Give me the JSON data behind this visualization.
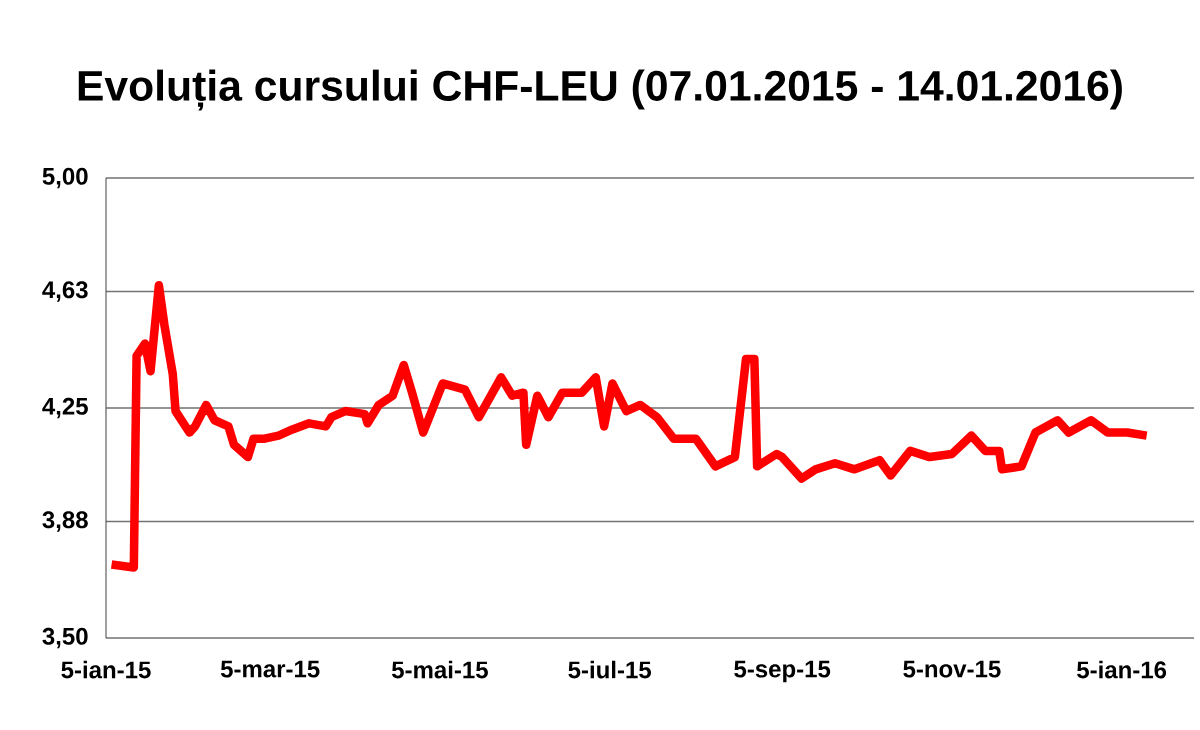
{
  "chart_data": {
    "type": "line",
    "title": "Evoluția cursului CHF-LEU (07.01.2015 - 14.01.2016)",
    "x": [
      "2015-01-07",
      "2015-01-15",
      "2015-01-16",
      "2015-01-19",
      "2015-01-21",
      "2015-01-24",
      "2015-01-26",
      "2015-01-29",
      "2015-01-30",
      "2015-02-04",
      "2015-02-06",
      "2015-02-10",
      "2015-02-13",
      "2015-02-18",
      "2015-02-20",
      "2015-02-25",
      "2015-02-27",
      "2015-03-03",
      "2015-03-08",
      "2015-03-13",
      "2015-03-19",
      "2015-03-25",
      "2015-03-27",
      "2015-04-01",
      "2015-04-08",
      "2015-04-09",
      "2015-04-13",
      "2015-04-18",
      "2015-04-22",
      "2015-04-25",
      "2015-04-29",
      "2015-05-06",
      "2015-05-14",
      "2015-05-19",
      "2015-05-27",
      "2015-05-31",
      "2015-06-04",
      "2015-06-05",
      "2015-06-09",
      "2015-06-13",
      "2015-06-18",
      "2015-06-25",
      "2015-06-30",
      "2015-07-03",
      "2015-07-06",
      "2015-07-11",
      "2015-07-16",
      "2015-07-22",
      "2015-07-28",
      "2015-08-02",
      "2015-08-05",
      "2015-08-12",
      "2015-08-19",
      "2015-08-23",
      "2015-08-26",
      "2015-08-27",
      "2015-09-03",
      "2015-09-05",
      "2015-09-12",
      "2015-09-17",
      "2015-09-24",
      "2015-10-01",
      "2015-10-10",
      "2015-10-14",
      "2015-10-21",
      "2015-10-28",
      "2015-11-05",
      "2015-11-12",
      "2015-11-17",
      "2015-11-22",
      "2015-11-23",
      "2015-11-30",
      "2015-12-05",
      "2015-12-13",
      "2015-12-17",
      "2015-12-25",
      "2015-12-31",
      "2016-01-07",
      "2016-01-14"
    ],
    "series": [
      {
        "color": "#ff0000",
        "values": [
          3.74,
          3.73,
          4.42,
          4.46,
          4.37,
          4.65,
          4.52,
          4.36,
          4.24,
          4.17,
          4.19,
          4.26,
          4.21,
          4.19,
          4.13,
          4.09,
          4.15,
          4.15,
          4.16,
          4.18,
          4.2,
          4.19,
          4.22,
          4.24,
          4.23,
          4.2,
          4.26,
          4.29,
          4.39,
          4.3,
          4.17,
          4.33,
          4.31,
          4.22,
          4.35,
          4.29,
          4.3,
          4.13,
          4.29,
          4.22,
          4.3,
          4.3,
          4.35,
          4.19,
          4.33,
          4.24,
          4.26,
          4.22,
          4.15,
          4.15,
          4.15,
          4.06,
          4.09,
          4.41,
          4.41,
          4.06,
          4.1,
          4.09,
          4.02,
          4.05,
          4.07,
          4.05,
          4.08,
          4.03,
          4.11,
          4.09,
          4.1,
          4.16,
          4.11,
          4.11,
          4.05,
          4.06,
          4.17,
          4.21,
          4.17,
          4.21,
          4.17,
          4.17,
          4.16
        ]
      }
    ],
    "xlim": [
      "2015-01-05",
      "2016-01-31"
    ],
    "xticks": [
      {
        "value": "2015-01-05",
        "label": "5-ian-15"
      },
      {
        "value": "2015-03-05",
        "label": "5-mar-15"
      },
      {
        "value": "2015-05-05",
        "label": "5-mai-15"
      },
      {
        "value": "2015-07-05",
        "label": "5-iul-15"
      },
      {
        "value": "2015-09-05",
        "label": "5-sep-15"
      },
      {
        "value": "2015-11-05",
        "label": "5-nov-15"
      },
      {
        "value": "2016-01-05",
        "label": "5-ian-16"
      }
    ],
    "ylim": [
      3.5,
      5.0
    ],
    "yticks": [
      {
        "value": 3.5,
        "label": "3,50"
      },
      {
        "value": 3.88,
        "label": "3,88"
      },
      {
        "value": 4.25,
        "label": "4,25"
      },
      {
        "value": 4.63,
        "label": "4,63"
      },
      {
        "value": 5.0,
        "label": "5,00"
      }
    ],
    "grid": "y",
    "line_style": "solid",
    "marker": "none"
  }
}
